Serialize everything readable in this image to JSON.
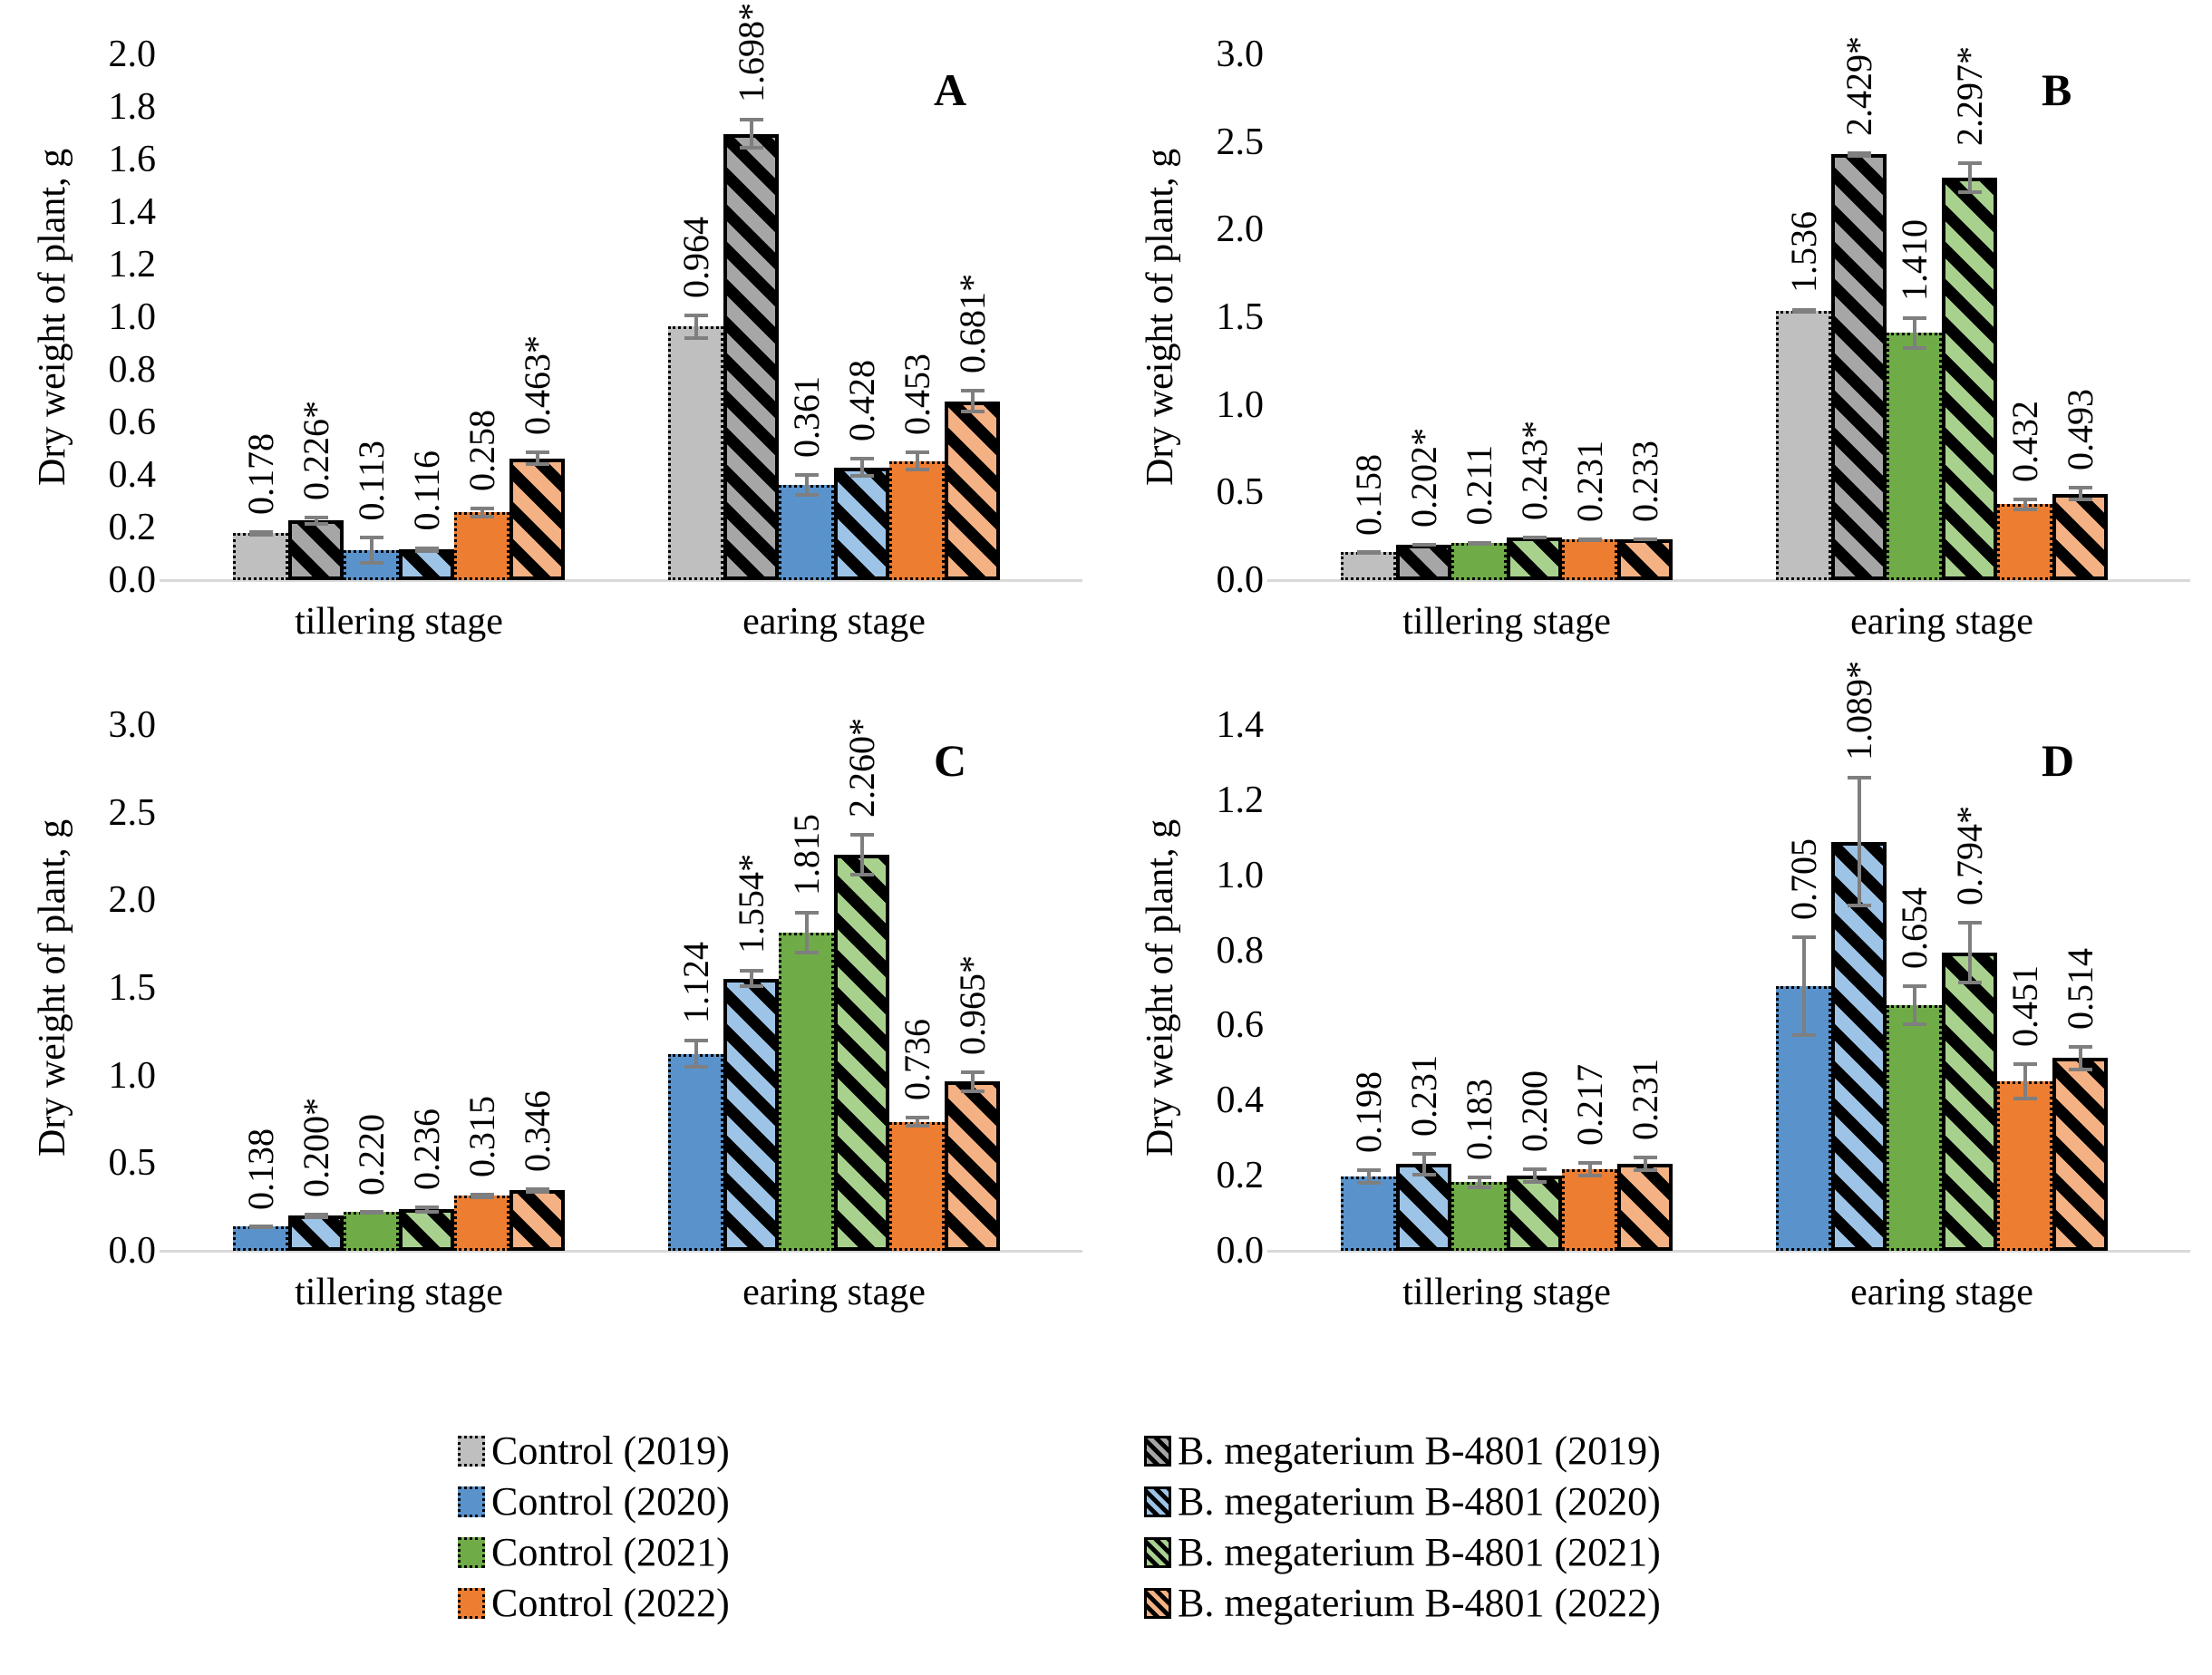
{
  "figure": {
    "y_axis_title": "Dry weight of plant, g",
    "categories": [
      "tillering stage",
      "earing stage"
    ]
  },
  "styles": {
    "control-2019": {
      "fill": "#BFBFBF",
      "hatch": false
    },
    "bmeg-2019": {
      "fill": "#A6A6A6",
      "hatch": true
    },
    "control-2020": {
      "fill": "#5A93CC",
      "hatch": false
    },
    "bmeg-2020": {
      "fill": "#9DC3E6",
      "hatch": true
    },
    "control-2021": {
      "fill": "#6FAC47",
      "hatch": false
    },
    "bmeg-2021": {
      "fill": "#A9D18E",
      "hatch": true
    },
    "control-2022": {
      "fill": "#ED7D31",
      "hatch": false
    },
    "bmeg-2022": {
      "fill": "#F4B183",
      "hatch": true
    }
  },
  "legend": {
    "left": [
      {
        "style": "control-2019",
        "label": "Control (2019)"
      },
      {
        "style": "control-2020",
        "label": "Control (2020)"
      },
      {
        "style": "control-2021",
        "label": "Control (2021)"
      },
      {
        "style": "control-2022",
        "label": "Control (2022)"
      }
    ],
    "right": [
      {
        "style": "bmeg-2019",
        "label": "B. megaterium B-4801 (2019)"
      },
      {
        "style": "bmeg-2020",
        "label": "B. megaterium B-4801 (2020)"
      },
      {
        "style": "bmeg-2021",
        "label": "B. megaterium B-4801 (2021)"
      },
      {
        "style": "bmeg-2022",
        "label": "B. megaterium B-4801 (2022)"
      }
    ]
  },
  "chart_data": [
    {
      "panel": "A",
      "type": "bar",
      "ylabel": "Dry weight of plant, g",
      "ylim": [
        0,
        2.0
      ],
      "yticks": [
        "0.0",
        "0.2",
        "0.4",
        "0.6",
        "0.8",
        "1.0",
        "1.2",
        "1.4",
        "1.6",
        "1.8",
        "2.0"
      ],
      "grid": false,
      "groups": [
        {
          "category": "tillering stage",
          "bars": [
            {
              "series": "Control (2019)",
              "style": "control-2019",
              "value": 0.178,
              "label": "0.178",
              "err": 0.012
            },
            {
              "series": "B. megaterium B-4801 (2019)",
              "style": "bmeg-2019",
              "value": 0.226,
              "label": "0.226*",
              "err": 0.018
            },
            {
              "series": "Control (2020)",
              "style": "control-2020",
              "value": 0.113,
              "label": "0.113",
              "err": 0.055
            },
            {
              "series": "B. megaterium B-4801 (2020)",
              "style": "bmeg-2020",
              "value": 0.116,
              "label": "0.116",
              "err": 0.012
            },
            {
              "series": "Control (2022)",
              "style": "control-2022",
              "value": 0.258,
              "label": "0.258",
              "err": 0.022
            },
            {
              "series": "B. megaterium B-4801 (2022)",
              "style": "bmeg-2022",
              "value": 0.463,
              "label": "0.463*",
              "err": 0.03
            }
          ]
        },
        {
          "category": "earing stage",
          "bars": [
            {
              "series": "Control (2019)",
              "style": "control-2019",
              "value": 0.964,
              "label": "0.964",
              "err": 0.05
            },
            {
              "series": "B. megaterium B-4801 (2019)",
              "style": "bmeg-2019",
              "value": 1.698,
              "label": "1.698*",
              "err": 0.06
            },
            {
              "series": "Control (2020)",
              "style": "control-2020",
              "value": 0.361,
              "label": "0.361",
              "err": 0.045
            },
            {
              "series": "B. megaterium B-4801 (2020)",
              "style": "bmeg-2020",
              "value": 0.428,
              "label": "0.428",
              "err": 0.04
            },
            {
              "series": "Control (2022)",
              "style": "control-2022",
              "value": 0.453,
              "label": "0.453",
              "err": 0.04
            },
            {
              "series": "B. megaterium B-4801 (2022)",
              "style": "bmeg-2022",
              "value": 0.681,
              "label": "0.681*",
              "err": 0.045
            }
          ]
        }
      ]
    },
    {
      "panel": "B",
      "type": "bar",
      "ylabel": "Dry weight of plant, g",
      "ylim": [
        0,
        3.0
      ],
      "yticks": [
        "0.0",
        "0.5",
        "1.0",
        "1.5",
        "2.0",
        "2.5",
        "3.0"
      ],
      "grid": false,
      "groups": [
        {
          "category": "tillering stage",
          "bars": [
            {
              "series": "Control (2019)",
              "style": "control-2019",
              "value": 0.158,
              "label": "0.158",
              "err": 0.01
            },
            {
              "series": "B. megaterium B-4801 (2019)",
              "style": "bmeg-2019",
              "value": 0.202,
              "label": "0.202*",
              "err": 0.012
            },
            {
              "series": "Control (2021)",
              "style": "control-2021",
              "value": 0.211,
              "label": "0.211",
              "err": 0.012
            },
            {
              "series": "B. megaterium B-4801 (2021)",
              "style": "bmeg-2021",
              "value": 0.243,
              "label": "0.243*",
              "err": 0.012
            },
            {
              "series": "Control (2022)",
              "style": "control-2022",
              "value": 0.231,
              "label": "0.231",
              "err": 0.012
            },
            {
              "series": "B. megaterium B-4801 (2022)",
              "style": "bmeg-2022",
              "value": 0.233,
              "label": "0.233",
              "err": 0.012
            }
          ]
        },
        {
          "category": "earing stage",
          "bars": [
            {
              "series": "Control (2019)",
              "style": "control-2019",
              "value": 1.536,
              "label": "1.536",
              "err": 0.015
            },
            {
              "series": "B. megaterium B-4801 (2019)",
              "style": "bmeg-2019",
              "value": 2.429,
              "label": "2.429*",
              "err": 0.02
            },
            {
              "series": "Control (2021)",
              "style": "control-2021",
              "value": 1.41,
              "label": "1.410",
              "err": 0.095
            },
            {
              "series": "B. megaterium B-4801 (2021)",
              "style": "bmeg-2021",
              "value": 2.297,
              "label": "2.297*",
              "err": 0.095
            },
            {
              "series": "Control (2022)",
              "style": "control-2022",
              "value": 0.432,
              "label": "0.432",
              "err": 0.04
            },
            {
              "series": "B. megaterium B-4801 (2022)",
              "style": "bmeg-2022",
              "value": 0.493,
              "label": "0.493",
              "err": 0.045
            }
          ]
        }
      ]
    },
    {
      "panel": "C",
      "type": "bar",
      "ylabel": "Dry weight of plant, g",
      "ylim": [
        0,
        3.0
      ],
      "yticks": [
        "0.0",
        "0.5",
        "1.0",
        "1.5",
        "2.0",
        "2.5",
        "3.0"
      ],
      "grid": false,
      "groups": [
        {
          "category": "tillering stage",
          "bars": [
            {
              "series": "Control (2020)",
              "style": "control-2020",
              "value": 0.138,
              "label": "0.138",
              "err": 0.007
            },
            {
              "series": "B. megaterium B-4801 (2020)",
              "style": "bmeg-2020",
              "value": 0.2,
              "label": "0.200*",
              "err": 0.018
            },
            {
              "series": "Control (2021)",
              "style": "control-2021",
              "value": 0.22,
              "label": "0.220",
              "err": 0.009
            },
            {
              "series": "B. megaterium B-4801 (2021)",
              "style": "bmeg-2021",
              "value": 0.236,
              "label": "0.236",
              "err": 0.022
            },
            {
              "series": "Control (2022)",
              "style": "control-2022",
              "value": 0.315,
              "label": "0.315",
              "err": 0.018
            },
            {
              "series": "B. megaterium B-4801 (2022)",
              "style": "bmeg-2022",
              "value": 0.346,
              "label": "0.346",
              "err": 0.018
            }
          ]
        },
        {
          "category": "earing stage",
          "bars": [
            {
              "series": "Control (2020)",
              "style": "control-2020",
              "value": 1.124,
              "label": "1.124",
              "err": 0.085
            },
            {
              "series": "B. megaterium B-4801 (2020)",
              "style": "bmeg-2020",
              "value": 1.554,
              "label": "1.554*",
              "err": 0.055
            },
            {
              "series": "Control (2021)",
              "style": "control-2021",
              "value": 1.815,
              "label": "1.815",
              "err": 0.125
            },
            {
              "series": "B. megaterium B-4801 (2021)",
              "style": "bmeg-2021",
              "value": 2.26,
              "label": "2.260*",
              "err": 0.125
            },
            {
              "series": "Control (2022)",
              "style": "control-2022",
              "value": 0.736,
              "label": "0.736",
              "err": 0.035
            },
            {
              "series": "B. megaterium B-4801 (2022)",
              "style": "bmeg-2022",
              "value": 0.965,
              "label": "0.965*",
              "err": 0.065
            }
          ]
        }
      ]
    },
    {
      "panel": "D",
      "type": "bar",
      "ylabel": "Dry weight of plant, g",
      "ylim": [
        0,
        1.4
      ],
      "yticks": [
        "0.0",
        "0.2",
        "0.4",
        "0.6",
        "0.8",
        "1.0",
        "1.2",
        "1.4"
      ],
      "grid": false,
      "groups": [
        {
          "category": "tillering stage",
          "bars": [
            {
              "series": "Control (2020)",
              "style": "control-2020",
              "value": 0.198,
              "label": "0.198",
              "err": 0.022
            },
            {
              "series": "B. megaterium B-4801 (2020)",
              "style": "bmeg-2020",
              "value": 0.231,
              "label": "0.231",
              "err": 0.032
            },
            {
              "series": "Control (2021)",
              "style": "control-2021",
              "value": 0.183,
              "label": "0.183",
              "err": 0.018
            },
            {
              "series": "B. megaterium B-4801 (2021)",
              "style": "bmeg-2021",
              "value": 0.2,
              "label": "0.200",
              "err": 0.022
            },
            {
              "series": "Control (2022)",
              "style": "control-2022",
              "value": 0.217,
              "label": "0.217",
              "err": 0.022
            },
            {
              "series": "B. megaterium B-4801 (2022)",
              "style": "bmeg-2022",
              "value": 0.231,
              "label": "0.231",
              "err": 0.022
            }
          ]
        },
        {
          "category": "earing stage",
          "bars": [
            {
              "series": "Control (2020)",
              "style": "control-2020",
              "value": 0.705,
              "label": "0.705",
              "err": 0.135
            },
            {
              "series": "B. megaterium B-4801 (2020)",
              "style": "bmeg-2020",
              "value": 1.089,
              "label": "1.089*",
              "err": 0.175
            },
            {
              "series": "Control (2021)",
              "style": "control-2021",
              "value": 0.654,
              "label": "0.654",
              "err": 0.055
            },
            {
              "series": "B. megaterium B-4801 (2021)",
              "style": "bmeg-2021",
              "value": 0.794,
              "label": "0.794*",
              "err": 0.085
            },
            {
              "series": "Control (2022)",
              "style": "control-2022",
              "value": 0.451,
              "label": "0.451",
              "err": 0.05
            },
            {
              "series": "B. megaterium B-4801 (2022)",
              "style": "bmeg-2022",
              "value": 0.514,
              "label": "0.514",
              "err": 0.035
            }
          ]
        }
      ]
    }
  ]
}
